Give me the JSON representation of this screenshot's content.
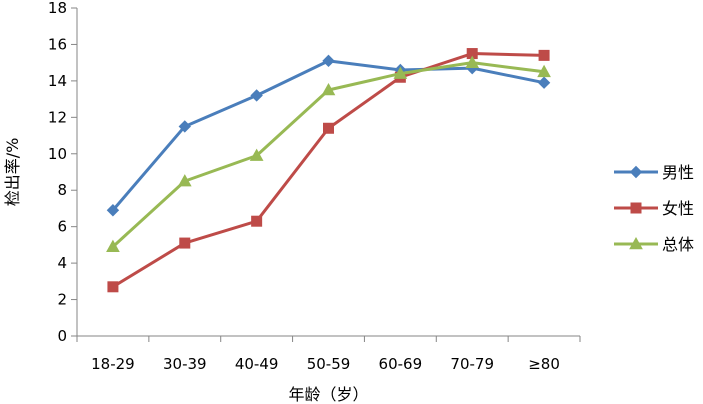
{
  "chart_data": {
    "type": "line",
    "categories": [
      "18-29",
      "30-39",
      "40-49",
      "50-59",
      "60-69",
      "70-79",
      "≥80"
    ],
    "series": [
      {
        "name": "男性",
        "values": [
          6.9,
          11.5,
          13.2,
          15.1,
          14.6,
          14.7,
          13.9
        ],
        "color": "#4A7EBB",
        "marker": "diamond"
      },
      {
        "name": "女性",
        "values": [
          2.7,
          5.1,
          6.3,
          11.4,
          14.2,
          15.5,
          15.4
        ],
        "color": "#BE4B48",
        "marker": "square"
      },
      {
        "name": "总体",
        "values": [
          4.9,
          8.5,
          9.9,
          13.5,
          14.4,
          15.0,
          14.5
        ],
        "color": "#98B954",
        "marker": "triangle"
      }
    ],
    "xlabel": "年龄（岁）",
    "ylabel": "检出率/%",
    "ylim": [
      0,
      18
    ],
    "yticks": [
      0,
      2,
      4,
      6,
      8,
      10,
      12,
      14,
      16,
      18
    ],
    "grid": false,
    "legend_position": "right"
  }
}
